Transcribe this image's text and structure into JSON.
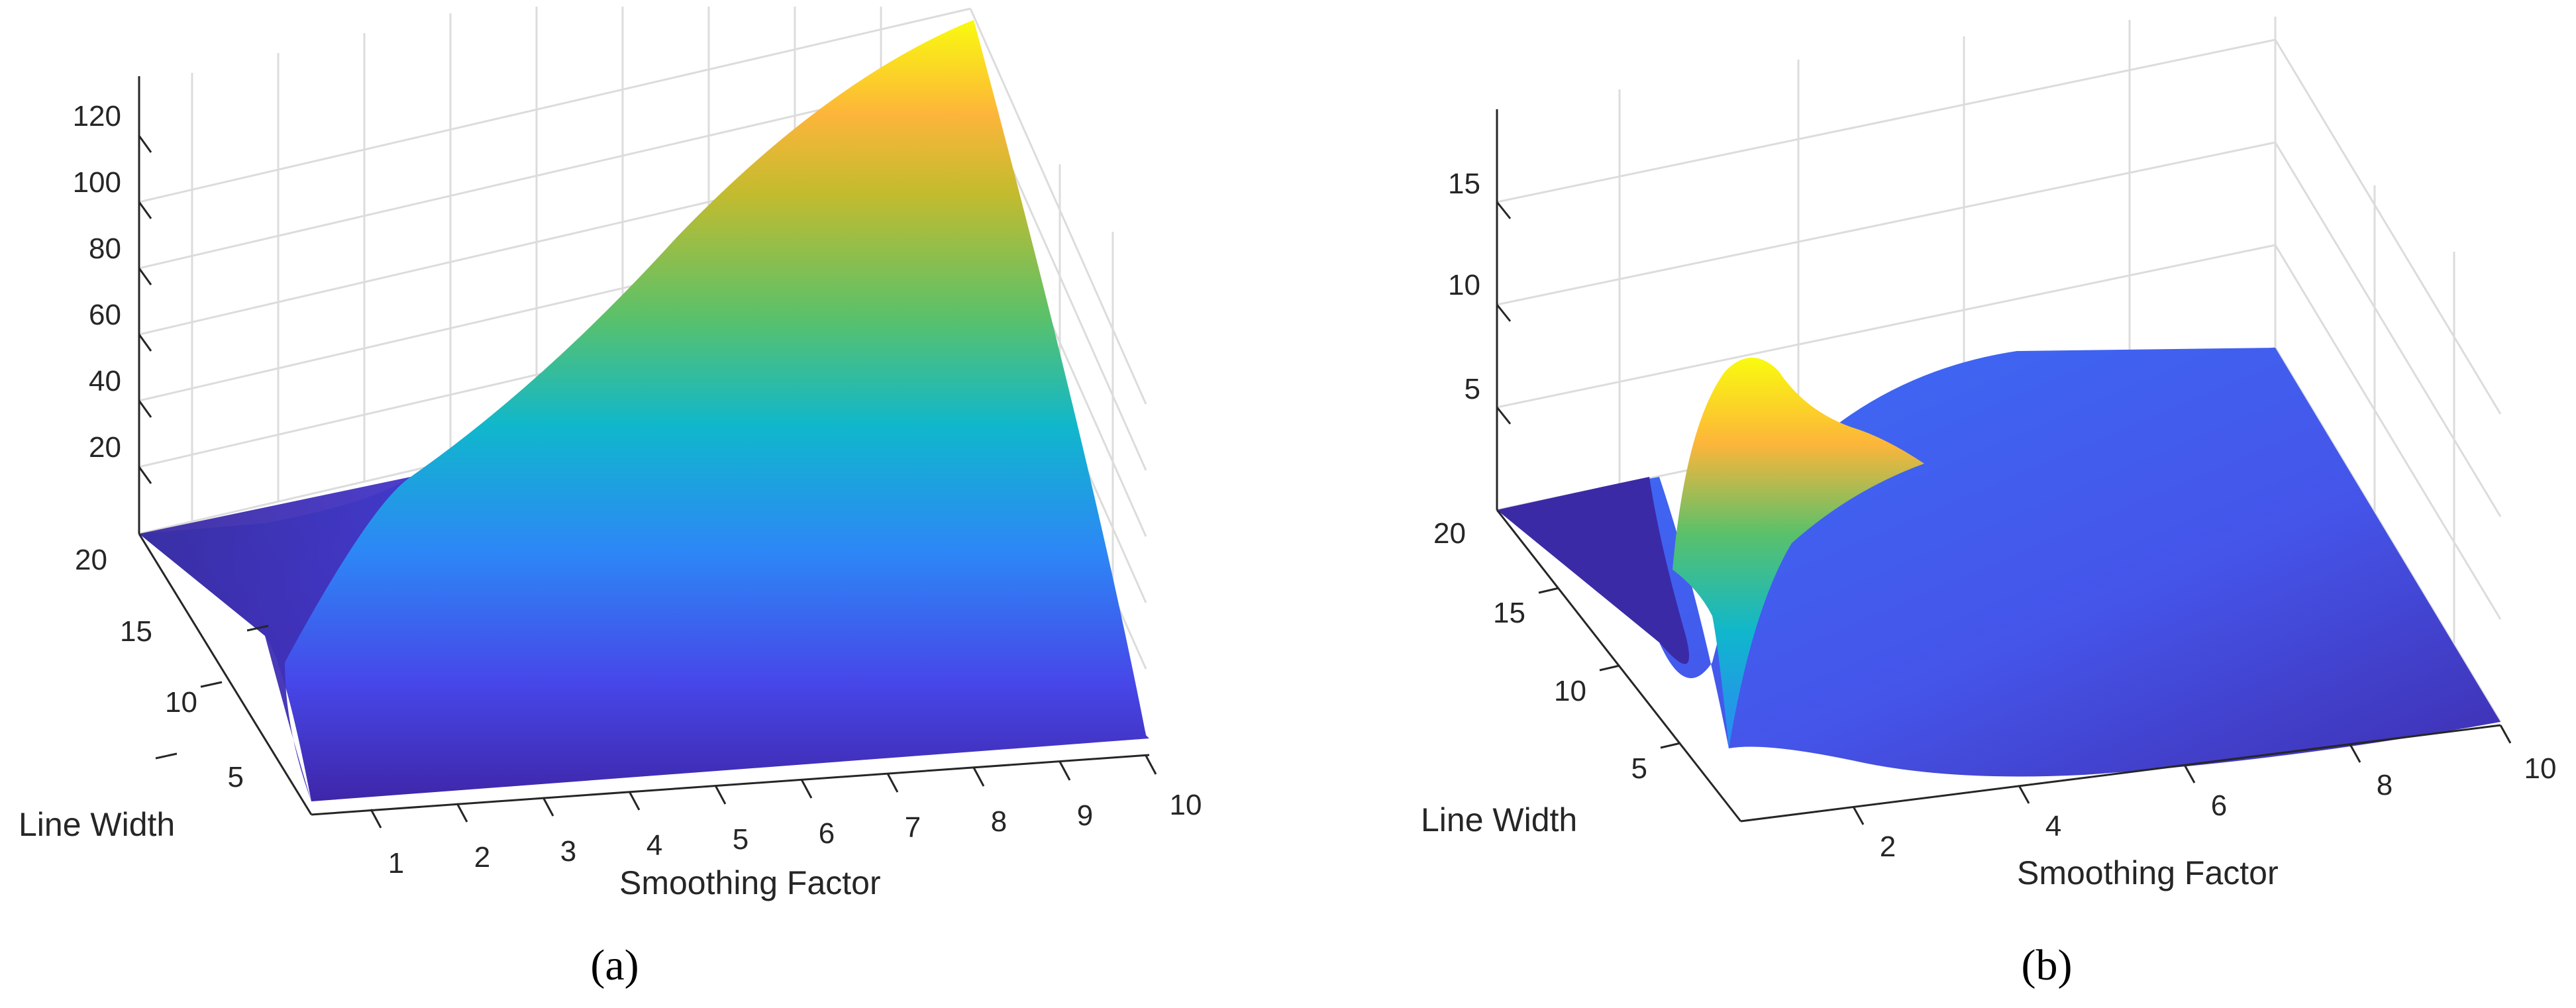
{
  "chart_data": [
    {
      "type": "surface",
      "caption": "(a)",
      "xlabel": "Smoothing Factor",
      "ylabel": "Line Width",
      "zlabel": "",
      "xlim": [
        0,
        10
      ],
      "ylim": [
        0,
        20
      ],
      "zlim": [
        0,
        130
      ],
      "x_ticks": [
        "1",
        "2",
        "3",
        "4",
        "5",
        "6",
        "7",
        "8",
        "9",
        "10"
      ],
      "y_ticks": [
        "5",
        "10",
        "15",
        "20"
      ],
      "z_ticks": [
        "20",
        "40",
        "60",
        "80",
        "100",
        "120"
      ],
      "colormap": "parula",
      "grid": true,
      "surface_profile": {
        "description_points_smoothing_factor": [
          0,
          1,
          2,
          3,
          4,
          5,
          6,
          7,
          8,
          9,
          10
        ],
        "z_at_line_width_20": [
          0,
          0.5,
          2,
          8,
          22,
          45,
          70,
          92,
          110,
          122,
          130
        ],
        "z_at_line_width_0": [
          0,
          0,
          0,
          0,
          0,
          0,
          0,
          0,
          0,
          0,
          0
        ]
      }
    },
    {
      "type": "surface",
      "caption": "(b)",
      "xlabel": "Smoothing Factor",
      "ylabel": "Line Width",
      "zlabel": "",
      "xlim": [
        0,
        10
      ],
      "ylim": [
        0,
        20
      ],
      "zlim": [
        0,
        19
      ],
      "x_ticks": [
        "2",
        "4",
        "6",
        "8",
        "10"
      ],
      "y_ticks": [
        "5",
        "10",
        "15",
        "20"
      ],
      "z_ticks": [
        "5",
        "10",
        "15"
      ],
      "colormap": "parula",
      "grid": true,
      "surface_profile": {
        "peak_smoothing_factor": 0.5,
        "peak_line_width": 12,
        "peak_z": 12,
        "plateau_z": 5
      }
    }
  ],
  "colors": {
    "axis": "#262626",
    "grid": "#dcdcdc",
    "colormap_low": "#3e26a8",
    "colormap_mid": "#1fb8c8",
    "colormap_high": "#f9fb0e"
  }
}
